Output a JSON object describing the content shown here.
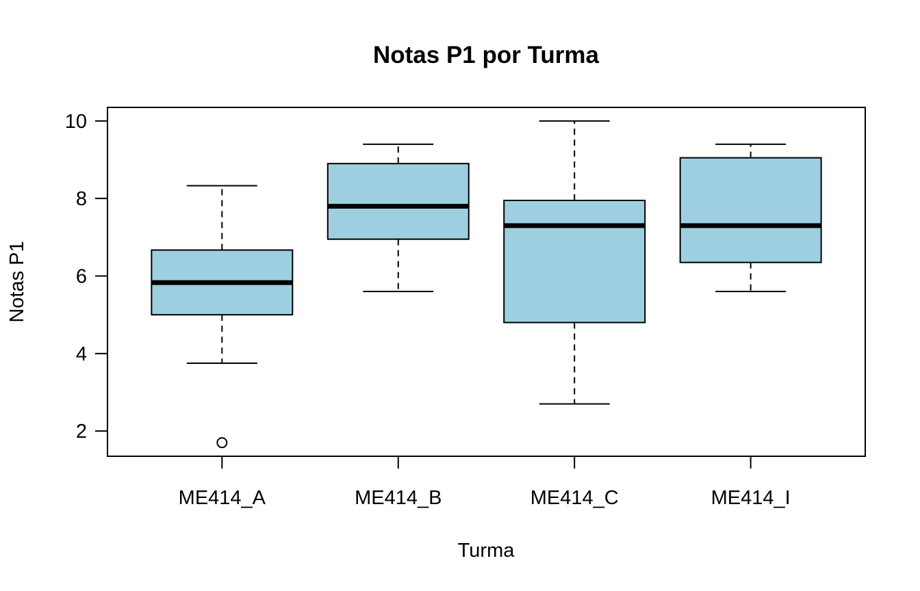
{
  "chart_data": {
    "type": "boxplot",
    "title": "Notas P1 por Turma",
    "xlabel": "Turma",
    "ylabel": "Notas P1",
    "ylim": [
      1.35,
      10.35
    ],
    "yticks": [
      2,
      4,
      6,
      8,
      10
    ],
    "categories": [
      "ME414_A",
      "ME414_B",
      "ME414_C",
      "ME414_I"
    ],
    "boxes": [
      {
        "category": "ME414_A",
        "whisker_low": 3.75,
        "q1": 5.0,
        "median": 5.83,
        "q3": 6.67,
        "whisker_high": 8.33,
        "outliers": [
          1.7
        ]
      },
      {
        "category": "ME414_B",
        "whisker_low": 5.6,
        "q1": 6.95,
        "median": 7.8,
        "q3": 8.9,
        "whisker_high": 9.4,
        "outliers": []
      },
      {
        "category": "ME414_C",
        "whisker_low": 2.7,
        "q1": 4.8,
        "median": 7.3,
        "q3": 7.95,
        "whisker_high": 10.0,
        "outliers": []
      },
      {
        "category": "ME414_I",
        "whisker_low": 5.6,
        "q1": 6.35,
        "median": 7.3,
        "q3": 9.05,
        "whisker_high": 9.4,
        "outliers": []
      }
    ],
    "box_color": "#9ecfe0",
    "line_color": "#000000",
    "grid": false,
    "legend": "none"
  }
}
